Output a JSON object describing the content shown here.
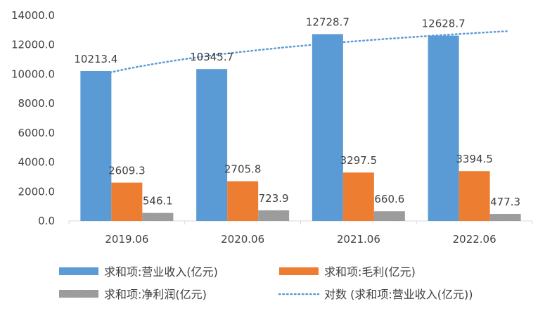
{
  "chart_data": {
    "type": "bar",
    "title": "",
    "xlabel": "",
    "ylabel": "",
    "categories": [
      "2019.06",
      "2020.06",
      "2021.06",
      "2022.06"
    ],
    "ylim": [
      0,
      14000
    ],
    "y_ticks": [
      "0.0",
      "2000.0",
      "4000.0",
      "6000.0",
      "8000.0",
      "10000.0",
      "12000.0",
      "14000.0"
    ],
    "y_tick_values": [
      0,
      2000,
      4000,
      6000,
      8000,
      10000,
      12000,
      14000
    ],
    "grid": false,
    "legend_position": "bottom",
    "series": [
      {
        "name": "求和项:营业收入(亿元)",
        "values": [
          10213.4,
          10345.7,
          12728.7,
          12628.7
        ],
        "labels": [
          "10213.4",
          "10345.7",
          "12728.7",
          "12628.7"
        ],
        "color": "#5B9BD5",
        "style": "solid"
      },
      {
        "name": "求和项:毛利(亿元)",
        "values": [
          2609.3,
          2705.8,
          3297.5,
          3394.5
        ],
        "labels": [
          "2609.3",
          "2705.8",
          "3297.5",
          "3394.5"
        ],
        "color": "#ED7D31",
        "style": "solid"
      },
      {
        "name": "求和项:净利润(亿元)",
        "values": [
          546.1,
          723.9,
          660.6,
          477.3
        ],
        "labels": [
          "546.1",
          "723.9",
          "660.6",
          "477.3"
        ],
        "color": "#A5A5A5",
        "style": "hatched"
      }
    ],
    "trendline": {
      "name": "对数 (求和项:营业收入(亿元))",
      "type": "logarithmic",
      "of_series": "求和项:营业收入(亿元)",
      "color": "#5B9BD5",
      "style": "dotted"
    }
  }
}
